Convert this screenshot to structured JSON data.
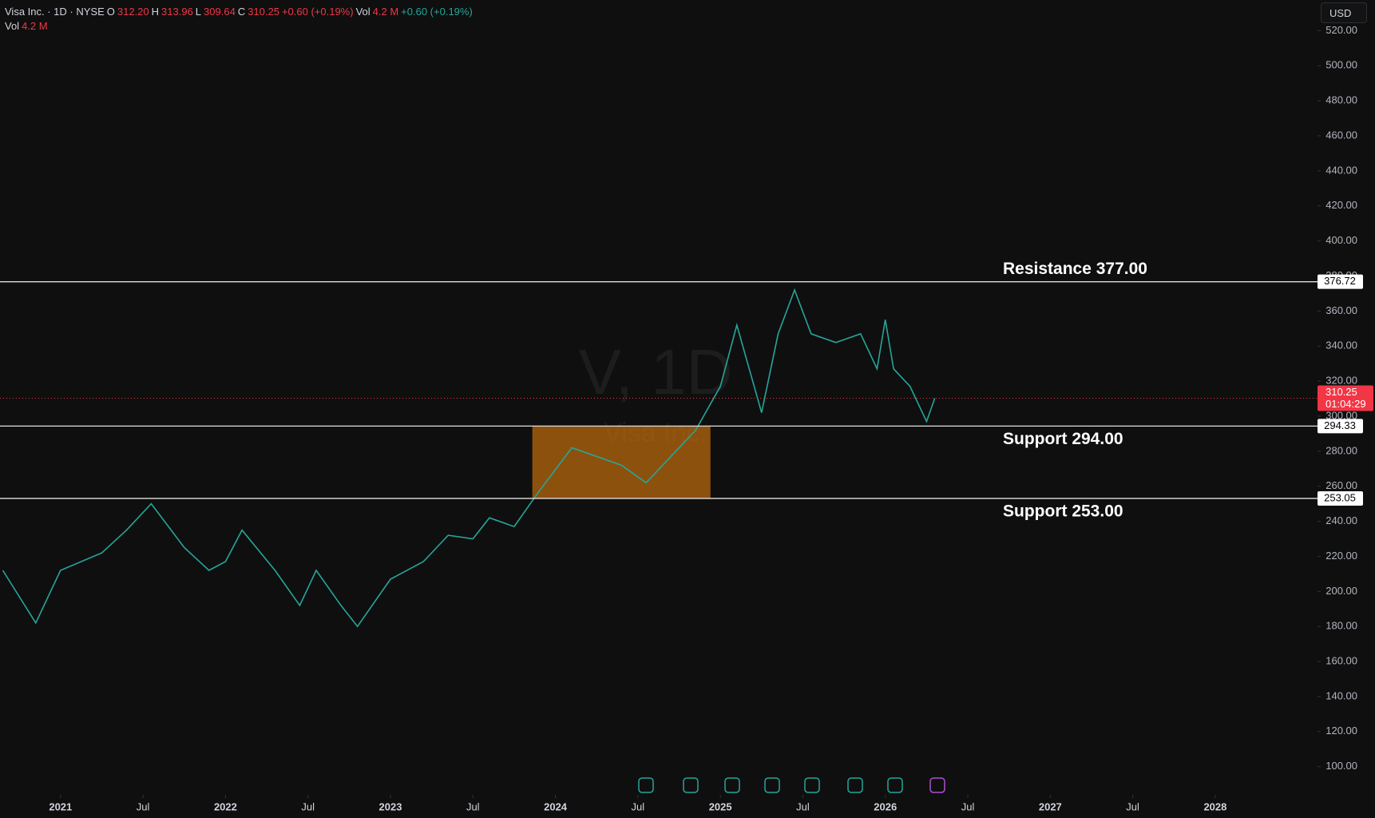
{
  "chart_data": {
    "type": "line",
    "color": "#26a69a",
    "header": [
      {
        "text": "Visa Inc. · 1D · NYSE",
        "color": "#d1d4dc"
      },
      {
        "text": "O",
        "color": "#d1d4dc"
      },
      {
        "text": "312.20",
        "color": "#f23645"
      },
      {
        "text": "H",
        "color": "#d1d4dc"
      },
      {
        "text": "313.96",
        "color": "#f23645"
      },
      {
        "text": "L",
        "color": "#d1d4dc"
      },
      {
        "text": "309.64",
        "color": "#f23645"
      },
      {
        "text": "C",
        "color": "#d1d4dc"
      },
      {
        "text": "310.25",
        "color": "#f23645"
      },
      {
        "text": "+0.60 (+0.19%)",
        "color": "#f23645"
      },
      {
        "text": "Vol",
        "color": "#d1d4dc"
      },
      {
        "text": "4.2 M",
        "color": "#f23645"
      },
      {
        "text": "+0.60 (+0.19%)",
        "color": "#26a69a"
      }
    ],
    "volume": [
      {
        "text": "Vol",
        "color": "#d1d4dc"
      },
      {
        "text": "4.2 M",
        "color": "#f23645"
      }
    ],
    "currency": "USD",
    "watermark": "V, 1D",
    "watermark_sub": "Visa Inc.",
    "x": [
      2020.65,
      2020.85,
      2021.0,
      2021.25,
      2021.4,
      2021.55,
      2021.75,
      2021.9,
      2022.0,
      2022.1,
      2022.3,
      2022.45,
      2022.55,
      2022.7,
      2022.8,
      2023.0,
      2023.2,
      2023.35,
      2023.5,
      2023.6,
      2023.75,
      2023.9,
      2024.1,
      2024.25,
      2024.4,
      2024.55,
      2024.7,
      2024.85,
      2025.0,
      2025.1,
      2025.25,
      2025.35,
      2025.45,
      2025.55,
      2025.7,
      2025.85,
      2025.95,
      2026.0,
      2026.05,
      2026.15,
      2026.25,
      2026.3
    ],
    "values": [
      212,
      182,
      212,
      222,
      235,
      250,
      225,
      212,
      217,
      235,
      212,
      192,
      212,
      192,
      180,
      207,
      217,
      232,
      230,
      242,
      237,
      257,
      282,
      277,
      272,
      262,
      277,
      292,
      317,
      352,
      302,
      347,
      372,
      347,
      342,
      347,
      327,
      355,
      327,
      317,
      297,
      310.25
    ],
    "xlim": [
      2020.633,
      2028.62
    ],
    "ylim": [
      83.9,
      537.5
    ],
    "xticks": [
      2021,
      {
        "value": 2021.5,
        "label": "Jul"
      },
      2022,
      {
        "value": 2022.5,
        "label": "Jul"
      },
      2023,
      {
        "value": 2023.5,
        "label": "Jul"
      },
      2024,
      {
        "value": 2024.5,
        "label": "Jul"
      },
      2025,
      {
        "value": 2025.5,
        "label": "Jul"
      },
      2026,
      {
        "value": 2026.5,
        "label": "Jul"
      },
      2027,
      {
        "value": 2027.5,
        "label": "Jul"
      },
      2028
    ],
    "yticks": [
      {
        "value": 100,
        "label": "100.00"
      },
      {
        "value": 120,
        "label": "120.00"
      },
      {
        "value": 140,
        "label": "140.00"
      },
      {
        "value": 160,
        "label": "160.00"
      },
      {
        "value": 180,
        "label": "180.00"
      },
      {
        "value": 200,
        "label": "200.00"
      },
      {
        "value": 220,
        "label": "220.00"
      },
      {
        "value": 240,
        "label": "240.00"
      },
      {
        "value": 260,
        "label": "260.00"
      },
      {
        "value": 280,
        "label": "280.00"
      },
      {
        "value": 300,
        "label": "300.00"
      },
      {
        "value": 320,
        "label": "320.00"
      },
      {
        "value": 340,
        "label": "340.00"
      },
      {
        "value": 360,
        "label": "360.00"
      },
      {
        "value": 380,
        "label": "380.00"
      },
      {
        "value": 400,
        "label": "400.00"
      },
      {
        "value": 420,
        "label": "420.00"
      },
      {
        "value": 440,
        "label": "440.00"
      },
      {
        "value": 460,
        "label": "460.00"
      },
      {
        "value": 480,
        "label": "480.00"
      },
      {
        "value": 500,
        "label": "500.00"
      },
      {
        "value": 520,
        "label": "520.00"
      }
    ],
    "levels": [
      {
        "value": 376.72,
        "note": "Resistance 377.00"
      },
      {
        "value": 294.33,
        "note": "Support 294.00"
      },
      {
        "value": 253.05,
        "note": "Support 253.00"
      }
    ],
    "zone": {
      "x": [
        2023.86,
        2024.94
      ],
      "y": [
        253.05,
        294.33
      ],
      "color": "#b8680f"
    },
    "last": {
      "value": 310.25,
      "countdown": "01:04:29",
      "color": "#f23645"
    }
  }
}
